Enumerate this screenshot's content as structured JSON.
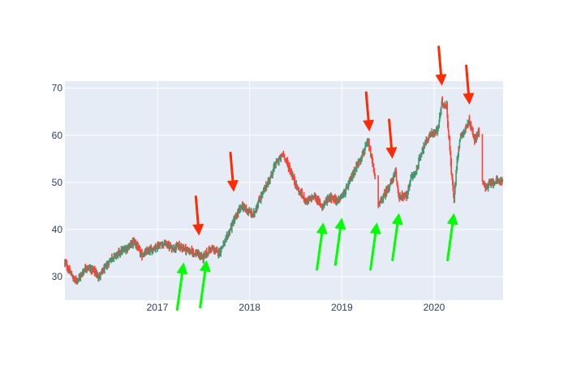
{
  "chart_data": {
    "type": "candlestick",
    "title": "",
    "xlabel": "",
    "ylabel": "",
    "x_ticks": [
      "2017",
      "2018",
      "2019",
      "2020"
    ],
    "y_ticks": [
      30,
      40,
      50,
      60,
      70
    ],
    "xlim": [
      "2016-01-01",
      "2020-09-30"
    ],
    "ylim": [
      25,
      71.5
    ],
    "grid": true,
    "legend": "none",
    "colors": {
      "plot_background": "#e5ecf6",
      "grid": "#ffffff",
      "increasing": "#3d9970",
      "decreasing": "#ff4136",
      "sell_arrow": "#ff2a00",
      "buy_arrow": "#00ff00",
      "tick_text": "#2a3f5f"
    },
    "close_series": [
      [
        "2016-01-01",
        33
      ],
      [
        "2016-01-20",
        31
      ],
      [
        "2016-02-10",
        29
      ],
      [
        "2016-03-01",
        30
      ],
      [
        "2016-03-25",
        32
      ],
      [
        "2016-04-20",
        31.5
      ],
      [
        "2016-05-15",
        30
      ],
      [
        "2016-06-10",
        32
      ],
      [
        "2016-07-05",
        34
      ],
      [
        "2016-08-01",
        35
      ],
      [
        "2016-09-01",
        36
      ],
      [
        "2016-10-01",
        37.5
      ],
      [
        "2016-11-01",
        34.5
      ],
      [
        "2016-12-01",
        35.5
      ],
      [
        "2017-01-01",
        36.5
      ],
      [
        "2017-02-01",
        37
      ],
      [
        "2017-03-01",
        36
      ],
      [
        "2017-04-01",
        36.5
      ],
      [
        "2017-05-01",
        35.5
      ],
      [
        "2017-06-01",
        35
      ],
      [
        "2017-07-01",
        34
      ],
      [
        "2017-08-01",
        36
      ],
      [
        "2017-09-01",
        35
      ],
      [
        "2017-10-01",
        38
      ],
      [
        "2017-11-01",
        42
      ],
      [
        "2017-12-01",
        45
      ],
      [
        "2018-01-15",
        43
      ],
      [
        "2018-02-15",
        47
      ],
      [
        "2018-03-15",
        50
      ],
      [
        "2018-04-15",
        54
      ],
      [
        "2018-05-15",
        56
      ],
      [
        "2018-06-15",
        52
      ],
      [
        "2018-07-15",
        48
      ],
      [
        "2018-08-15",
        46
      ],
      [
        "2018-09-15",
        47
      ],
      [
        "2018-10-15",
        45
      ],
      [
        "2018-11-15",
        47
      ],
      [
        "2018-12-15",
        46
      ],
      [
        "2019-01-15",
        48
      ],
      [
        "2019-02-15",
        52
      ],
      [
        "2019-03-15",
        55
      ],
      [
        "2019-04-15",
        58.5
      ],
      [
        "2019-05-10",
        52
      ],
      [
        "2019-05-25",
        45
      ],
      [
        "2019-06-15",
        47
      ],
      [
        "2019-07-15",
        50
      ],
      [
        "2019-08-01",
        52
      ],
      [
        "2019-08-15",
        47
      ],
      [
        "2019-09-15",
        47
      ],
      [
        "2019-10-01",
        51
      ],
      [
        "2019-10-20",
        52
      ],
      [
        "2019-11-15",
        57
      ],
      [
        "2019-12-15",
        60
      ],
      [
        "2020-01-15",
        61
      ],
      [
        "2020-02-01",
        67
      ],
      [
        "2020-02-20",
        66
      ],
      [
        "2020-03-10",
        52
      ],
      [
        "2020-03-20",
        46
      ],
      [
        "2020-04-01",
        55
      ],
      [
        "2020-04-15",
        60
      ],
      [
        "2020-05-01",
        61
      ],
      [
        "2020-05-20",
        63
      ],
      [
        "2020-06-10",
        59
      ],
      [
        "2020-06-25",
        61
      ],
      [
        "2020-07-10",
        50
      ],
      [
        "2020-07-25",
        49
      ],
      [
        "2020-08-15",
        50
      ],
      [
        "2020-09-30",
        50.5
      ]
    ],
    "gaps_after": [
      "2019-05-10",
      "2020-06-25"
    ],
    "annotations": [
      {
        "type": "sell_arrow",
        "x": "2017-06-15",
        "y": 38.7
      },
      {
        "type": "sell_arrow",
        "x": "2017-10-30",
        "y": 48
      },
      {
        "type": "sell_arrow",
        "x": "2019-04-20",
        "y": 60.8
      },
      {
        "type": "sell_arrow",
        "x": "2019-07-20",
        "y": 55
      },
      {
        "type": "sell_arrow",
        "x": "2020-02-01",
        "y": 70.5
      },
      {
        "type": "sell_arrow",
        "x": "2020-05-20",
        "y": 66.5
      },
      {
        "type": "buy_arrow",
        "x": "2017-04-15",
        "y": 33
      },
      {
        "type": "buy_arrow",
        "x": "2017-07-15",
        "y": 33.5
      },
      {
        "type": "buy_arrow",
        "x": "2018-10-20",
        "y": 41.5
      },
      {
        "type": "buy_arrow",
        "x": "2019-01-01",
        "y": 42.5
      },
      {
        "type": "buy_arrow",
        "x": "2019-05-20",
        "y": 41.5
      },
      {
        "type": "buy_arrow",
        "x": "2019-08-15",
        "y": 43.5
      },
      {
        "type": "buy_arrow",
        "x": "2020-03-20",
        "y": 43.5
      }
    ]
  }
}
